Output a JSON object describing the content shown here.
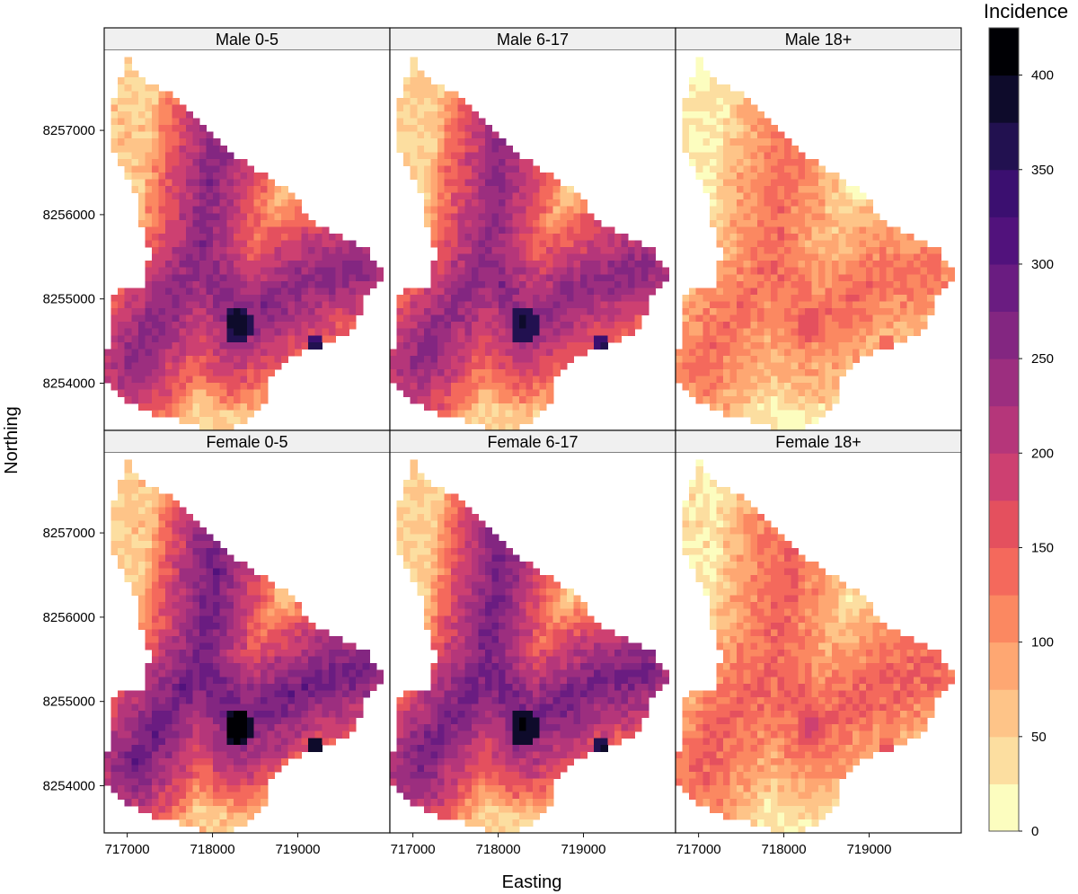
{
  "chart_data": {
    "type": "heatmap",
    "title": "",
    "xlabel": "Easting",
    "ylabel": "Northing",
    "x_ticks": [
      717000,
      718000,
      719000
    ],
    "y_ticks": [
      8254000,
      8255000,
      8256000,
      8257000
    ],
    "x_tick_labels": [
      "717000",
      "718000",
      "719000"
    ],
    "y_tick_labels": [
      "8254000",
      "8255000",
      "8256000",
      "8257000"
    ],
    "xlim": [
      716730,
      720080
    ],
    "ylim": [
      8253440,
      8257950
    ],
    "panels": [
      {
        "name": "Male 0-5",
        "row": 0,
        "col": 0,
        "center": 260,
        "edge": 55,
        "hotspot": 395
      },
      {
        "name": "Male 6-17",
        "row": 0,
        "col": 1,
        "center": 255,
        "edge": 50,
        "hotspot": 385
      },
      {
        "name": "Male 18+",
        "row": 0,
        "col": 2,
        "center": 135,
        "edge": 25,
        "hotspot": 175
      },
      {
        "name": "Female 0-5",
        "row": 1,
        "col": 0,
        "center": 285,
        "edge": 55,
        "hotspot": 425
      },
      {
        "name": "Female 6-17",
        "row": 1,
        "col": 1,
        "center": 280,
        "edge": 50,
        "hotspot": 410
      },
      {
        "name": "Female 18+",
        "row": 1,
        "col": 2,
        "center": 150,
        "edge": 30,
        "hotspot": 190
      }
    ],
    "legend": {
      "title": "Incidence",
      "breaks": [
        0,
        25,
        50,
        75,
        100,
        125,
        150,
        175,
        200,
        225,
        250,
        275,
        300,
        325,
        350,
        375,
        400,
        425
      ],
      "tick_values": [
        0,
        50,
        100,
        150,
        200,
        250,
        300,
        350,
        400
      ],
      "tick_labels": [
        "0",
        "50",
        "100",
        "150",
        "200",
        "250",
        "300",
        "350",
        "400"
      ],
      "colors": [
        "#fcfdbf",
        "#fcdea0",
        "#fec488",
        "#fea772",
        "#fb8861",
        "#f4695c",
        "#e4505e",
        "#cd4071",
        "#b5367a",
        "#9c2e7f",
        "#832681",
        "#6a1c81",
        "#51127c",
        "#3b0f70",
        "#221150",
        "#0e0b2b",
        "#000004"
      ]
    }
  }
}
